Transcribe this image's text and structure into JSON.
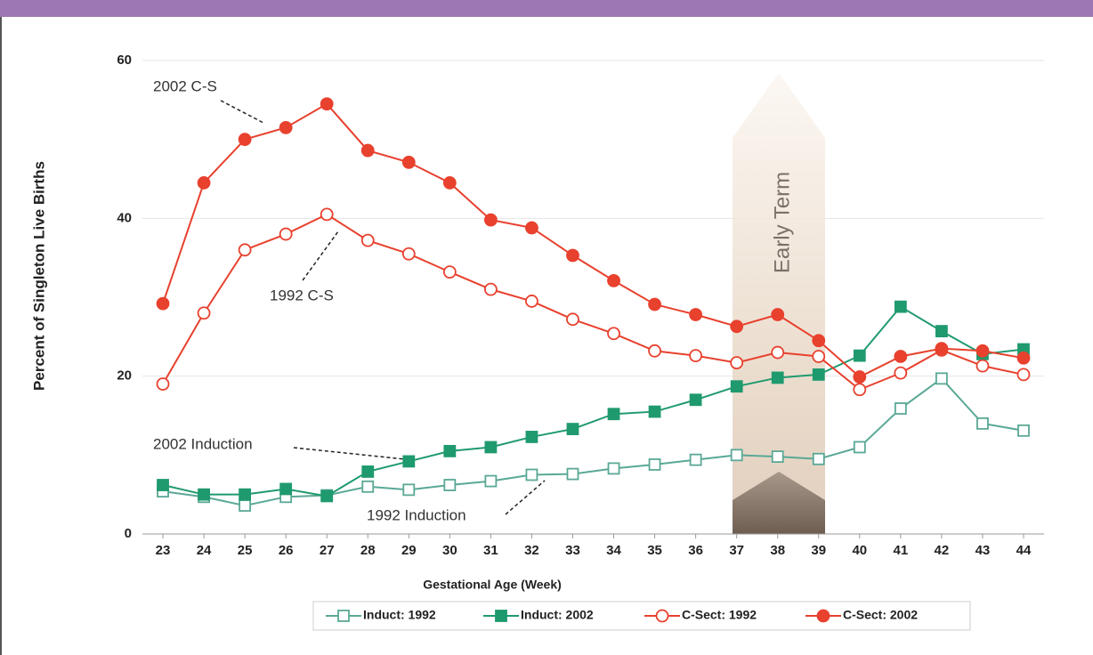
{
  "chart_data": {
    "type": "line",
    "xlabel": "Gestational Age (Week)",
    "ylabel": "Percent of Singleton Live Births",
    "x": [
      23,
      24,
      25,
      26,
      27,
      28,
      29,
      30,
      31,
      32,
      33,
      34,
      35,
      36,
      37,
      38,
      39,
      40,
      41,
      42,
      43,
      44
    ],
    "xlim": [
      22.5,
      44.5
    ],
    "xticks": [
      23,
      24,
      25,
      26,
      27,
      28,
      29,
      30,
      31,
      32,
      33,
      34,
      35,
      36,
      37,
      38,
      39,
      40,
      41,
      42,
      43,
      44
    ],
    "ylim": [
      0,
      60
    ],
    "yticks": [
      0,
      20,
      40,
      60
    ],
    "grid": true,
    "legend": "bottom",
    "annotations": [
      "2002 C-S",
      "1992 C-S",
      "2002 Induction",
      "1992 Induction",
      "Early Term"
    ],
    "series": [
      {
        "name": "Induct: 1992",
        "color": "#5aa896",
        "marker": "open-square",
        "values": [
          5.4,
          4.7,
          3.6,
          4.7,
          4.9,
          6,
          5.6,
          6.2,
          6.7,
          7.5,
          7.6,
          8.3,
          8.8,
          9.4,
          10,
          9.8,
          9.5,
          11,
          15.9,
          19.7,
          14,
          13.1
        ]
      },
      {
        "name": "Induct: 2002",
        "color": "#1f9a6e",
        "marker": "filled-square",
        "values": [
          6.2,
          5,
          5,
          5.7,
          4.8,
          7.9,
          9.2,
          10.5,
          11,
          12.3,
          13.3,
          15.2,
          15.5,
          17,
          18.7,
          19.8,
          20.2,
          22.6,
          28.8,
          25.7,
          22.8,
          23.4
        ]
      },
      {
        "name": "C-Sect: 1992",
        "color": "#e8412e",
        "marker": "open-circle",
        "values": [
          19,
          28,
          36,
          38,
          40.5,
          37.2,
          35.5,
          33.2,
          31,
          29.5,
          27.2,
          25.4,
          23.2,
          22.6,
          21.7,
          23,
          22.5,
          18.3,
          20.4,
          23.3,
          21.3,
          20.2
        ]
      },
      {
        "name": "C-Sect: 2002",
        "color": "#e8412e",
        "marker": "filled-circle",
        "values": [
          29.2,
          44.5,
          50,
          51.5,
          54.5,
          48.6,
          47.1,
          44.5,
          39.8,
          38.8,
          35.3,
          32.1,
          29.1,
          27.8,
          26.3,
          27.8,
          24.5,
          19.9,
          22.5,
          23.5,
          23.2,
          22.3
        ]
      }
    ]
  }
}
